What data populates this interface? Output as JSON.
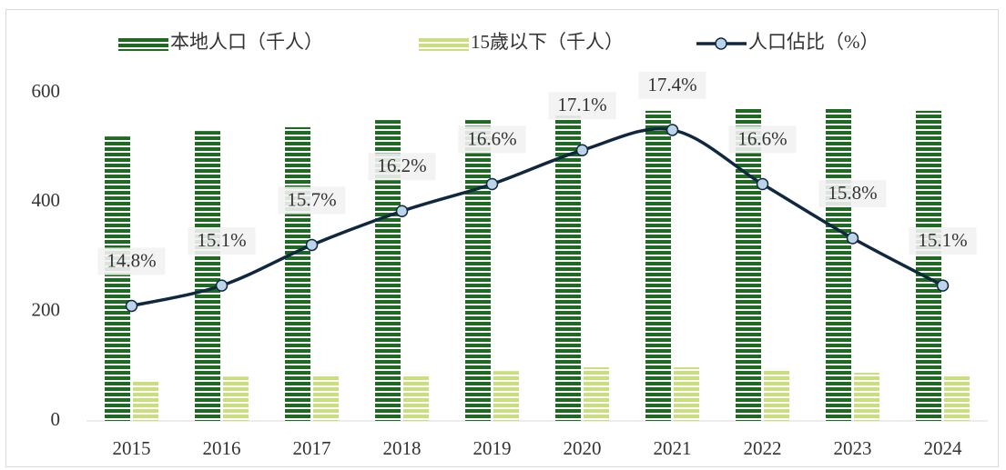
{
  "chart_data": {
    "type": "bar-line",
    "categories": [
      "2015",
      "2016",
      "2017",
      "2018",
      "2019",
      "2020",
      "2021",
      "2022",
      "2023",
      "2024"
    ],
    "series": [
      {
        "name": "本地人口（千人）",
        "type": "bar",
        "color": "#1f6a23",
        "values": [
          520,
          530,
          537,
          550,
          550,
          558,
          567,
          572,
          572,
          567
        ]
      },
      {
        "name": "15歲以下（千人）",
        "type": "bar",
        "color": "#c9de7e",
        "values": [
          75,
          81,
          85,
          85,
          91,
          98,
          98,
          95,
          88,
          85
        ]
      },
      {
        "name": "人口佔比（%）",
        "type": "line",
        "axis": "y2",
        "color": "#10283f",
        "marker_color": "#bcd3ea",
        "values": [
          14.8,
          15.1,
          15.7,
          16.2,
          16.6,
          17.1,
          17.4,
          16.6,
          15.8,
          15.1
        ],
        "value_labels": [
          "14.8%",
          "15.1%",
          "15.7%",
          "16.2%",
          "16.6%",
          "17.1%",
          "17.4%",
          "16.6%",
          "15.8%",
          "15.1%"
        ]
      }
    ],
    "ylim": [
      0,
      600
    ],
    "yticks": [
      0,
      200,
      400,
      600
    ],
    "y2lim": [
      13.1,
      17.95
    ],
    "legend": "top",
    "grid": false
  }
}
